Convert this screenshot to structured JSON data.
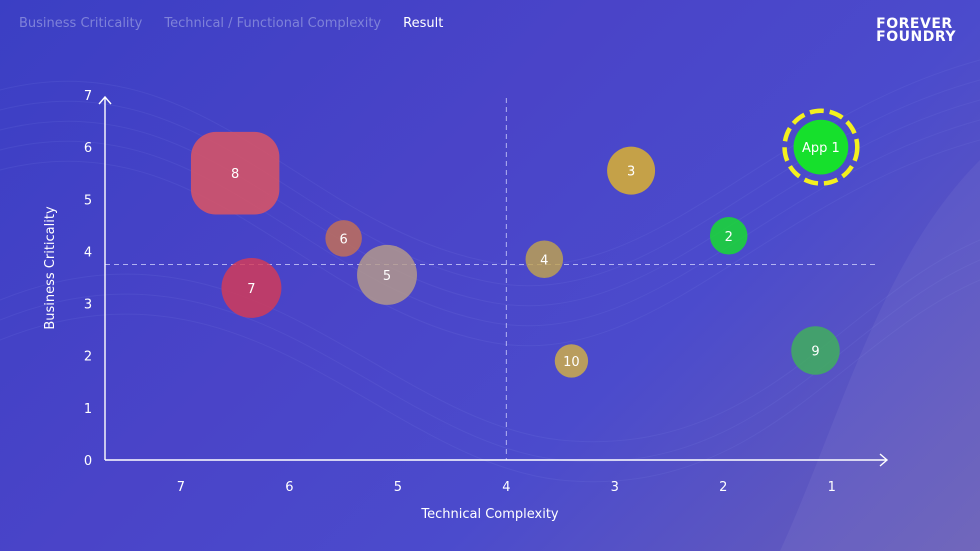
{
  "nav": {
    "tabs": [
      {
        "label": "Business Criticality",
        "active": false
      },
      {
        "label": "Technical / Functional Complexity",
        "active": false
      },
      {
        "label": "Result",
        "active": true
      }
    ]
  },
  "logo": {
    "line1": "FOREVER",
    "line2": "FOUNDRY"
  },
  "chart_data": {
    "type": "scatter",
    "subtype": "bubble",
    "xlabel": "Technical Complexity",
    "ylabel": "Business Criticality",
    "x_ticks": [
      "7",
      "6",
      "5",
      "4",
      "3",
      "2",
      "1"
    ],
    "y_ticks": [
      "0",
      "1",
      "2",
      "3",
      "4",
      "5",
      "6",
      "7"
    ],
    "xlim": [
      7.7,
      0.5
    ],
    "x_reversed": true,
    "ylim": [
      0,
      7
    ],
    "reference_lines": {
      "x": 4,
      "y": 3.75
    },
    "points": [
      {
        "label": "8",
        "x": 6.5,
        "y": 5.5,
        "size": 1.6,
        "color": "#e2555f",
        "shape": "rounded-square",
        "highlight": false
      },
      {
        "label": "7",
        "x": 6.35,
        "y": 3.3,
        "size": 1.15,
        "color": "#d53a55",
        "shape": "circle",
        "highlight": false
      },
      {
        "label": "6",
        "x": 5.5,
        "y": 4.25,
        "size": 0.7,
        "color": "#c57055",
        "shape": "circle",
        "highlight": false
      },
      {
        "label": "5",
        "x": 5.1,
        "y": 3.55,
        "size": 1.15,
        "color": "#b69b8a",
        "shape": "circle",
        "highlight": false
      },
      {
        "label": "4",
        "x": 3.65,
        "y": 3.85,
        "size": 0.72,
        "color": "#bfa24e",
        "shape": "circle",
        "highlight": false
      },
      {
        "label": "10",
        "x": 3.4,
        "y": 1.9,
        "size": 0.64,
        "color": "#d2b046",
        "shape": "circle",
        "highlight": false
      },
      {
        "label": "3",
        "x": 2.85,
        "y": 5.55,
        "size": 0.92,
        "color": "#e0b52b",
        "shape": "circle",
        "highlight": false
      },
      {
        "label": "2",
        "x": 1.95,
        "y": 4.3,
        "size": 0.72,
        "color": "#16e02c",
        "shape": "circle",
        "highlight": false
      },
      {
        "label": "App 1",
        "x": 1.1,
        "y": 6.0,
        "size": 1.05,
        "color": "#16e02c",
        "shape": "circle",
        "highlight": true,
        "highlight_color": "#f3f01e"
      },
      {
        "label": "9",
        "x": 1.15,
        "y": 2.1,
        "size": 0.93,
        "color": "#3fb259",
        "shape": "circle",
        "highlight": false
      }
    ]
  }
}
